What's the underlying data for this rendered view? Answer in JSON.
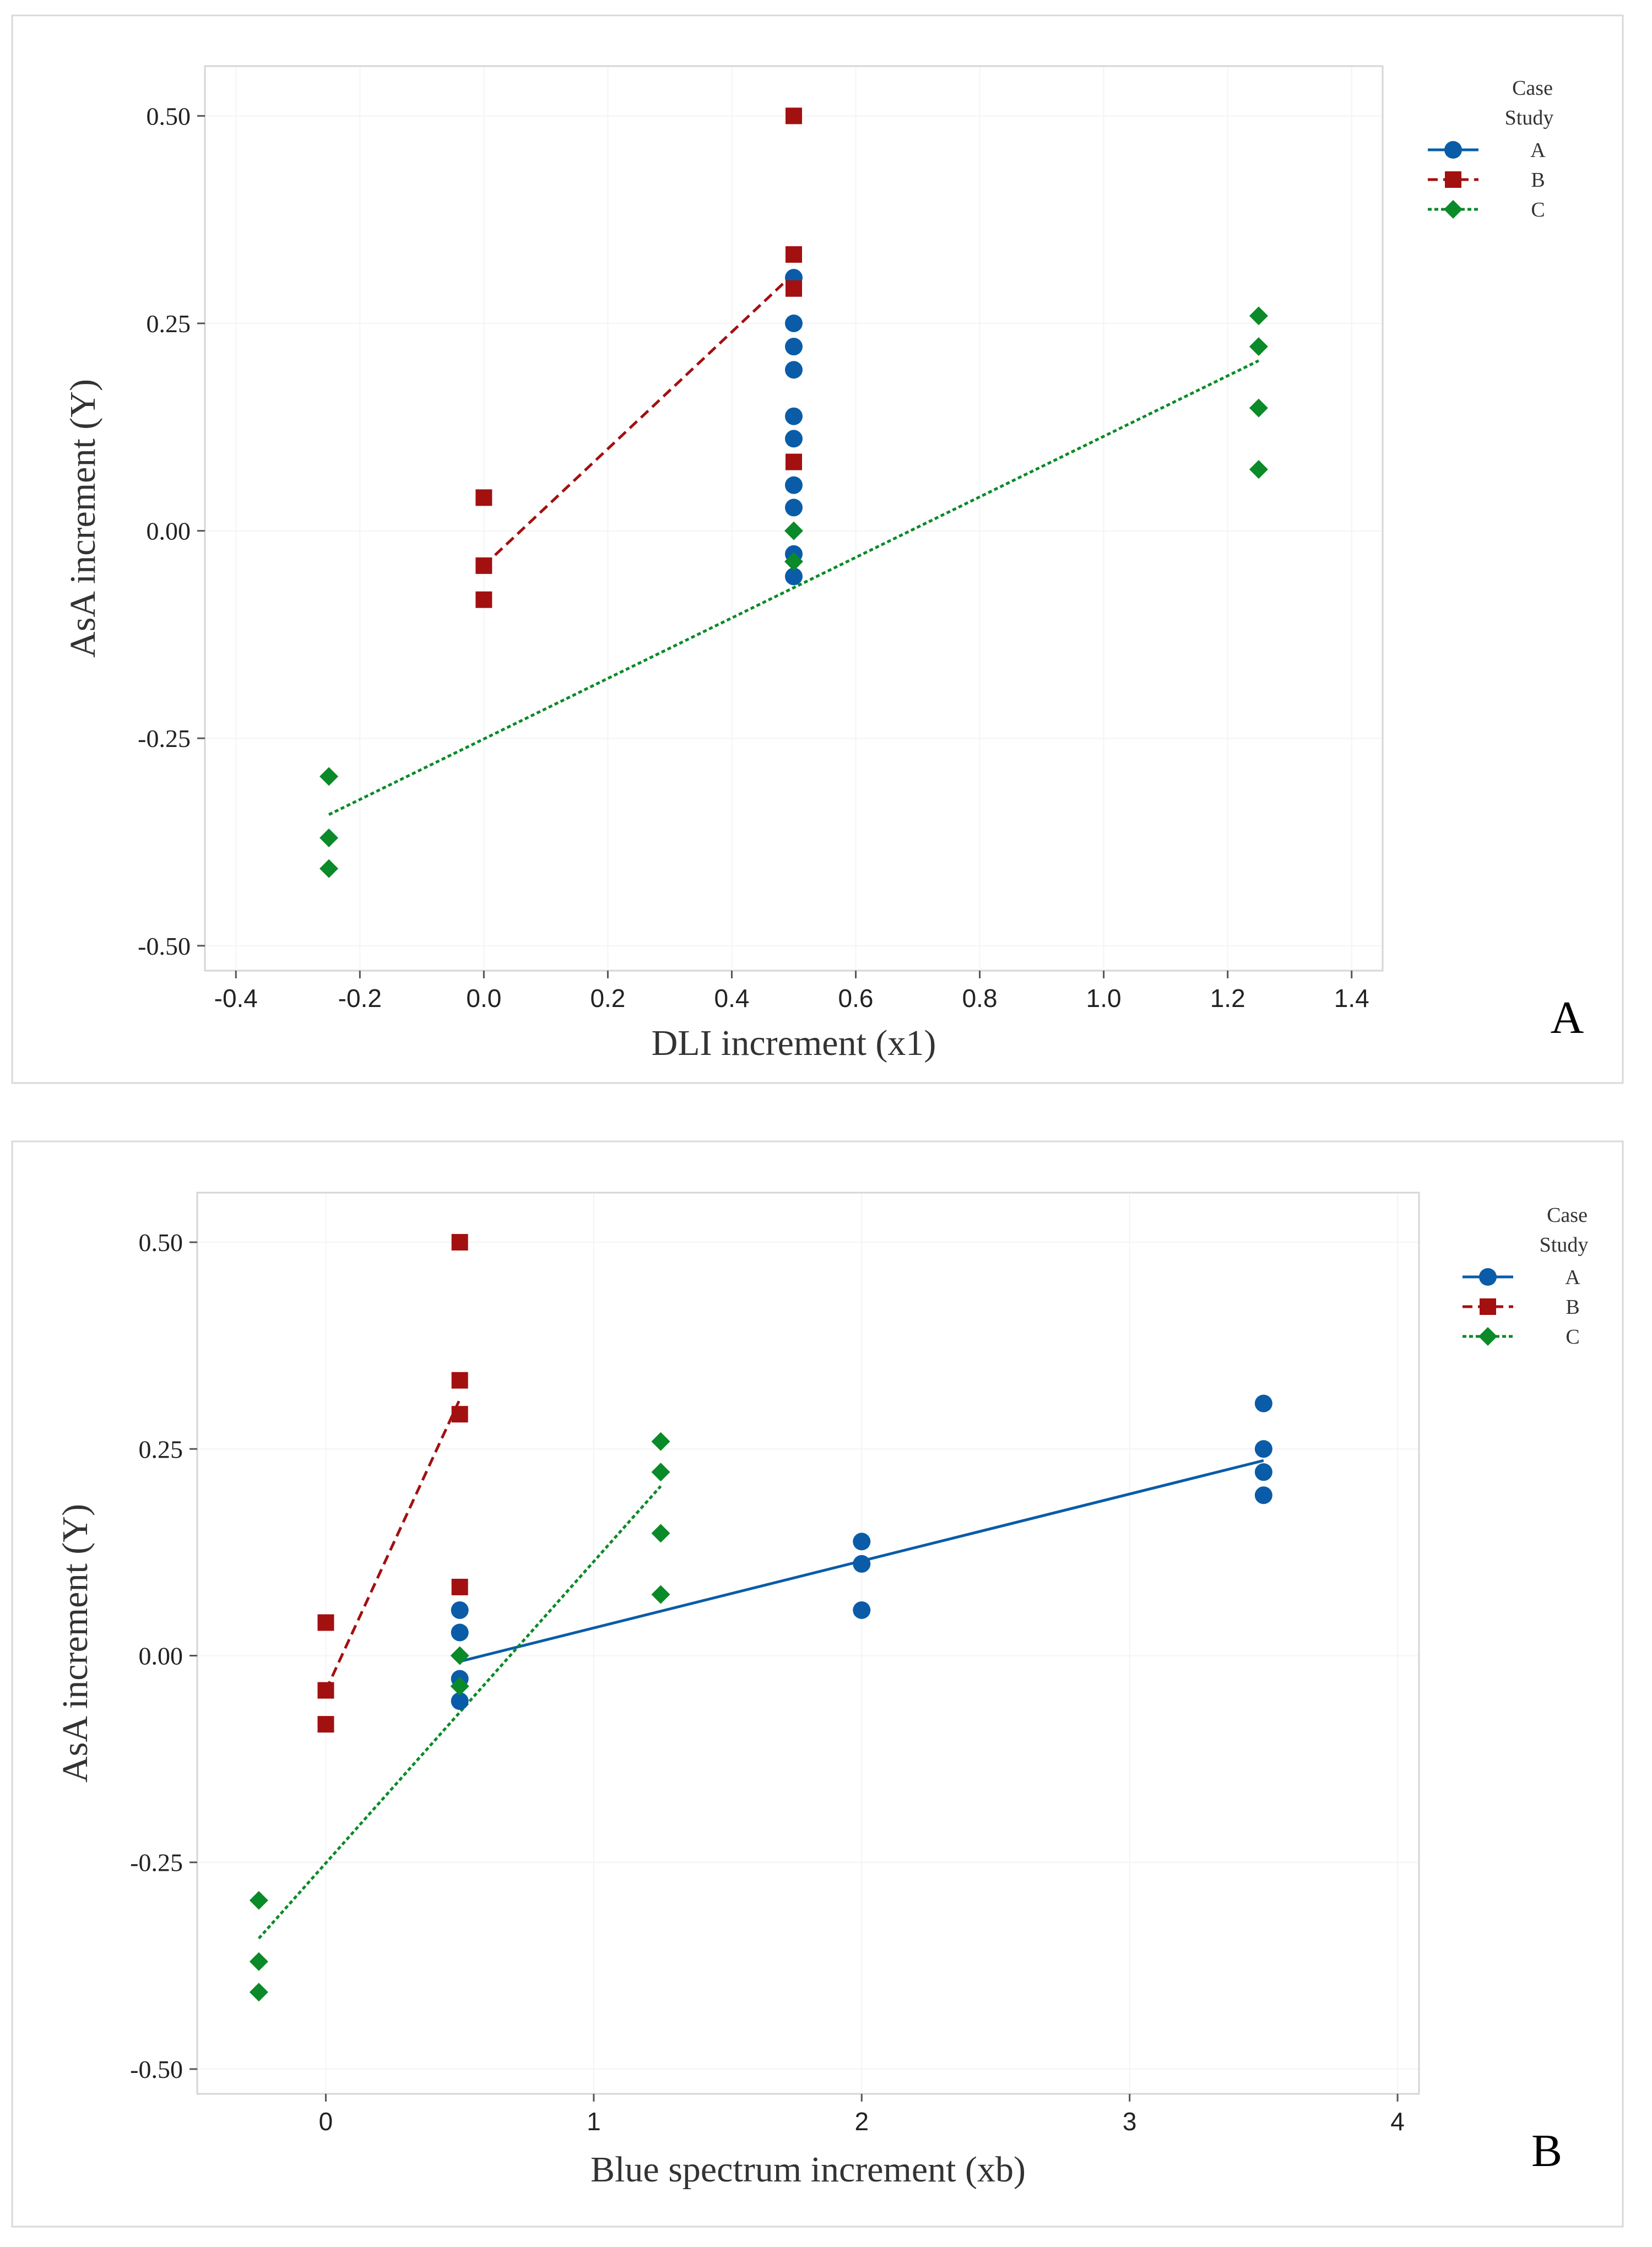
{
  "colors": {
    "A": "#0a5ca8",
    "B": "#a31010",
    "C": "#0a8a28"
  },
  "chart_data": [
    {
      "type": "scatter",
      "panel_label": "A",
      "xlabel": "DLI increment (x1)",
      "ylabel": "AsA increment (Y)",
      "xlim": [
        -0.45,
        1.45
      ],
      "ylim": [
        -0.53,
        0.56
      ],
      "xticks": [
        -0.4,
        -0.2,
        0.0,
        0.2,
        0.4,
        0.6,
        0.8,
        1.0,
        1.2,
        1.4
      ],
      "xtick_labels": [
        "-0.4",
        "-0.2",
        "0.0",
        "0.2",
        "0.4",
        "0.6",
        "0.8",
        "1.0",
        "1.2",
        "1.4"
      ],
      "yticks": [
        -0.5,
        -0.25,
        0.0,
        0.25,
        0.5
      ],
      "ytick_labels": [
        "-0.50",
        "-0.25",
        "0.00",
        "0.25",
        "0.50"
      ],
      "legend": {
        "title_line1": "Case",
        "title_line2": "Study",
        "entries": [
          "A",
          "B",
          "C"
        ],
        "position": "right"
      },
      "series": [
        {
          "name": "A",
          "marker": "circle",
          "line": "solid",
          "points": [
            [
              0.5,
              0.305
            ],
            [
              0.5,
              0.25
            ],
            [
              0.5,
              0.222
            ],
            [
              0.5,
              0.194
            ],
            [
              0.5,
              0.138
            ],
            [
              0.5,
              0.111
            ],
            [
              0.5,
              0.055
            ],
            [
              0.5,
              0.028
            ],
            [
              0.5,
              -0.028
            ],
            [
              0.5,
              -0.055
            ]
          ],
          "fit": null
        },
        {
          "name": "B",
          "marker": "square",
          "line": "dashed",
          "points": [
            [
              0.0,
              0.04
            ],
            [
              0.0,
              -0.042
            ],
            [
              0.0,
              -0.083
            ],
            [
              0.5,
              0.5
            ],
            [
              0.5,
              0.333
            ],
            [
              0.5,
              0.292
            ],
            [
              0.5,
              0.083
            ]
          ],
          "fit": [
            [
              0.0,
              -0.042
            ],
            [
              0.5,
              0.31
            ]
          ]
        },
        {
          "name": "C",
          "marker": "diamond",
          "line": "dotted",
          "points": [
            [
              -0.25,
              -0.296
            ],
            [
              -0.25,
              -0.37
            ],
            [
              -0.25,
              -0.407
            ],
            [
              0.5,
              0.0
            ],
            [
              0.5,
              -0.037
            ],
            [
              1.25,
              0.259
            ],
            [
              1.25,
              0.222
            ],
            [
              1.25,
              0.148
            ],
            [
              1.25,
              0.074
            ]
          ],
          "fit": [
            [
              -0.25,
              -0.342
            ],
            [
              1.25,
              0.205
            ]
          ]
        }
      ]
    },
    {
      "type": "scatter",
      "panel_label": "B",
      "xlabel": "Blue spectrum increment (xb)",
      "ylabel": "AsA increment (Y)",
      "xlim": [
        -0.48,
        4.08
      ],
      "ylim": [
        -0.53,
        0.56
      ],
      "xticks": [
        0,
        1,
        2,
        3,
        4
      ],
      "xtick_labels": [
        "0",
        "1",
        "2",
        "3",
        "4"
      ],
      "yticks": [
        -0.5,
        -0.25,
        0.0,
        0.25,
        0.5
      ],
      "ytick_labels": [
        "-0.50",
        "-0.25",
        "0.00",
        "0.25",
        "0.50"
      ],
      "legend": {
        "title_line1": "Case",
        "title_line2": "Study",
        "entries": [
          "A",
          "B",
          "C"
        ],
        "position": "right"
      },
      "series": [
        {
          "name": "A",
          "marker": "circle",
          "line": "solid",
          "points": [
            [
              0.5,
              0.055
            ],
            [
              0.5,
              0.028
            ],
            [
              0.5,
              -0.028
            ],
            [
              0.5,
              -0.055
            ],
            [
              2.0,
              0.138
            ],
            [
              2.0,
              0.111
            ],
            [
              2.0,
              0.055
            ],
            [
              3.5,
              0.305
            ],
            [
              3.5,
              0.25
            ],
            [
              3.5,
              0.222
            ],
            [
              3.5,
              0.194
            ]
          ],
          "fit": [
            [
              0.5,
              -0.007
            ],
            [
              3.5,
              0.236
            ]
          ]
        },
        {
          "name": "B",
          "marker": "square",
          "line": "dashed",
          "points": [
            [
              0.0,
              0.04
            ],
            [
              0.0,
              -0.042
            ],
            [
              0.0,
              -0.083
            ],
            [
              0.5,
              0.5
            ],
            [
              0.5,
              0.333
            ],
            [
              0.5,
              0.292
            ],
            [
              0.5,
              0.083
            ]
          ],
          "fit": [
            [
              0.0,
              -0.042
            ],
            [
              0.5,
              0.31
            ]
          ]
        },
        {
          "name": "C",
          "marker": "diamond",
          "line": "dotted",
          "points": [
            [
              -0.25,
              -0.296
            ],
            [
              -0.25,
              -0.37
            ],
            [
              -0.25,
              -0.407
            ],
            [
              0.5,
              0.0
            ],
            [
              0.5,
              -0.037
            ],
            [
              1.25,
              0.259
            ],
            [
              1.25,
              0.222
            ],
            [
              1.25,
              0.148
            ],
            [
              1.25,
              0.074
            ]
          ],
          "fit": [
            [
              -0.25,
              -0.342
            ],
            [
              1.25,
              0.205
            ]
          ]
        }
      ]
    }
  ]
}
